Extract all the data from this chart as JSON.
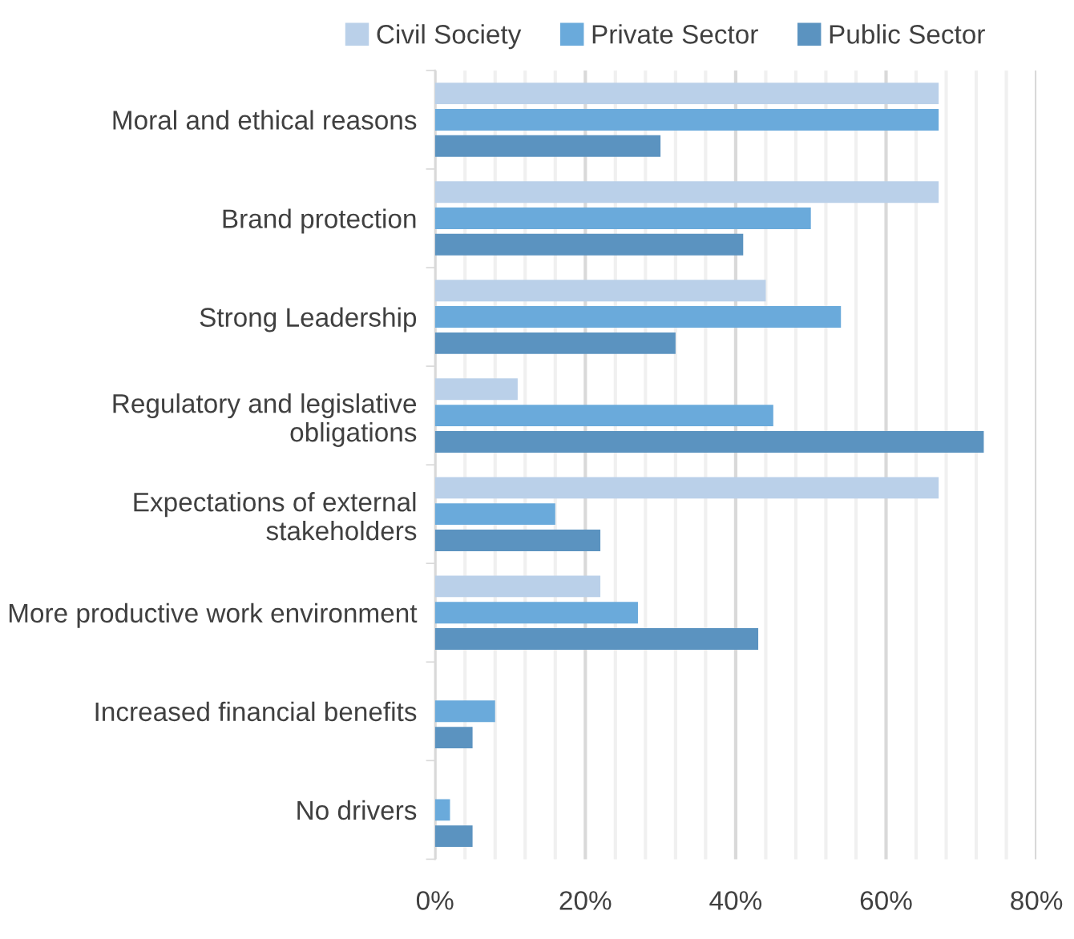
{
  "chart_data": {
    "type": "bar",
    "orientation": "horizontal",
    "categories": [
      "Moral and ethical reasons",
      "Brand protection",
      "Strong Leadership",
      "Regulatory and legislative obligations",
      "Expectations of external stakeholders",
      "More productive work environment",
      "Increased financial benefits",
      "No drivers"
    ],
    "series": [
      {
        "name": "Civil Society",
        "color": "#bad0e9",
        "values": [
          67,
          67,
          44,
          11,
          67,
          22,
          0,
          0
        ]
      },
      {
        "name": "Private Sector",
        "color": "#6aaadb",
        "values": [
          67,
          50,
          54,
          45,
          16,
          27,
          8,
          2
        ]
      },
      {
        "name": "Public Sector",
        "color": "#5b93c0",
        "values": [
          30,
          41,
          32,
          73,
          22,
          43,
          5,
          5
        ]
      }
    ],
    "xlim": [
      0,
      80
    ],
    "xticks": [
      {
        "value": 0,
        "label": "0%"
      },
      {
        "value": 4,
        "label": null
      },
      {
        "value": 8,
        "label": null
      },
      {
        "value": 12,
        "label": null
      },
      {
        "value": 16,
        "label": null
      },
      {
        "value": 20,
        "label": "20%"
      },
      {
        "value": 24,
        "label": null
      },
      {
        "value": 28,
        "label": null
      },
      {
        "value": 32,
        "label": null
      },
      {
        "value": 36,
        "label": null
      },
      {
        "value": 40,
        "label": "40%"
      },
      {
        "value": 44,
        "label": null
      },
      {
        "value": 48,
        "label": null
      },
      {
        "value": 52,
        "label": null
      },
      {
        "value": 56,
        "label": null
      },
      {
        "value": 60,
        "label": "60%"
      },
      {
        "value": 64,
        "label": null
      },
      {
        "value": 68,
        "label": null
      },
      {
        "value": 72,
        "label": null
      },
      {
        "value": 76,
        "label": null
      },
      {
        "value": 80,
        "label": "80%"
      }
    ],
    "grid": "x",
    "legend": "top"
  }
}
